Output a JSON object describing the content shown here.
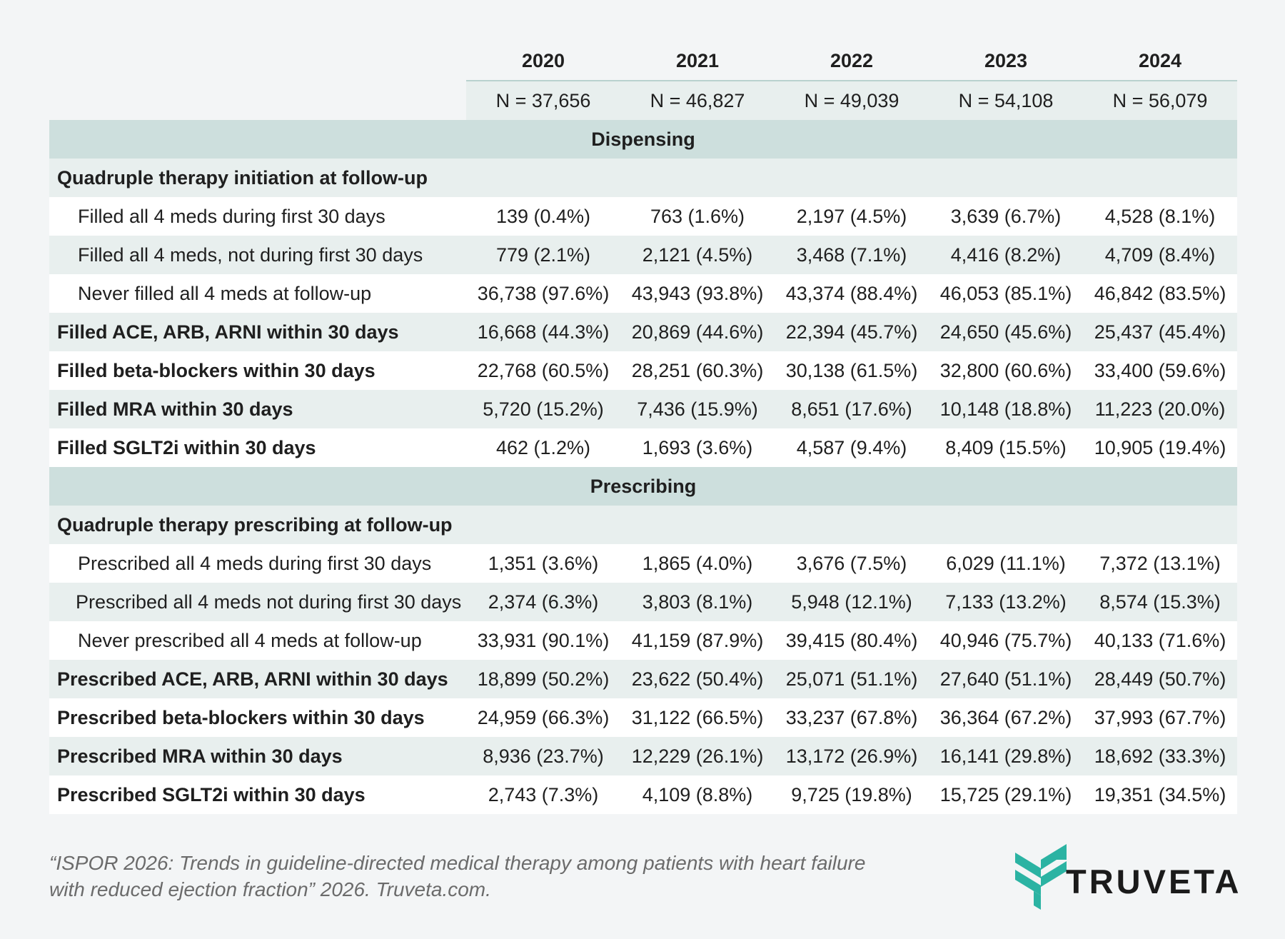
{
  "chart_data": {
    "type": "table",
    "columns": [
      "2020",
      "2021",
      "2022",
      "2023",
      "2024"
    ],
    "n_row": [
      "N = 37,656",
      "N = 46,827",
      "N = 49,039",
      "N = 54,108",
      "N = 56,079"
    ],
    "sections": [
      {
        "title": "Dispensing",
        "rows": [
          {
            "label": "Quadruple therapy initiation at follow-up",
            "style": "header",
            "values": []
          },
          {
            "label": "Filled all 4 meds during first 30 days",
            "style": "indent",
            "values": [
              "139 (0.4%)",
              "763 (1.6%)",
              "2,197 (4.5%)",
              "3,639 (6.7%)",
              "4,528 (8.1%)"
            ]
          },
          {
            "label": "Filled all 4 meds, not during first 30 days",
            "style": "indent",
            "values": [
              "779 (2.1%)",
              "2,121 (4.5%)",
              "3,468 (7.1%)",
              "4,416 (8.2%)",
              "4,709 (8.4%)"
            ]
          },
          {
            "label": "Never filled all 4 meds at follow-up",
            "style": "indent",
            "values": [
              "36,738 (97.6%)",
              "43,943 (93.8%)",
              "43,374 (88.4%)",
              "46,053 (85.1%)",
              "46,842 (83.5%)"
            ]
          },
          {
            "label": "Filled ACE, ARB, ARNI within 30 days",
            "style": "bold",
            "values": [
              "16,668 (44.3%)",
              "20,869 (44.6%)",
              "22,394 (45.7%)",
              "24,650 (45.6%)",
              "25,437 (45.4%)"
            ]
          },
          {
            "label": "Filled beta-blockers within 30 days",
            "style": "bold",
            "values": [
              "22,768 (60.5%)",
              "28,251 (60.3%)",
              "30,138 (61.5%)",
              "32,800 (60.6%)",
              "33,400 (59.6%)"
            ]
          },
          {
            "label": "Filled MRA within 30 days",
            "style": "bold",
            "values": [
              "5,720 (15.2%)",
              "7,436 (15.9%)",
              "8,651 (17.6%)",
              "10,148 (18.8%)",
              "11,223 (20.0%)"
            ]
          },
          {
            "label": "Filled SGLT2i within 30 days",
            "style": "bold",
            "values": [
              "462 (1.2%)",
              "1,693 (3.6%)",
              "4,587 (9.4%)",
              "8,409 (15.5%)",
              "10,905 (19.4%)"
            ]
          }
        ]
      },
      {
        "title": "Prescribing",
        "rows": [
          {
            "label": "Quadruple therapy prescribing at follow-up",
            "style": "header",
            "values": []
          },
          {
            "label": "Prescribed all 4 meds during first 30 days",
            "style": "indent",
            "values": [
              "1,351 (3.6%)",
              "1,865 (4.0%)",
              "3,676 (7.5%)",
              "6,029 (11.1%)",
              "7,372 (13.1%)"
            ]
          },
          {
            "label": "Prescribed all 4 meds not during first 30 days",
            "style": "indent2",
            "values": [
              "2,374 (6.3%)",
              "3,803 (8.1%)",
              "5,948 (12.1%)",
              "7,133 (13.2%)",
              "8,574 (15.3%)"
            ]
          },
          {
            "label": "Never prescribed all 4 meds at follow-up",
            "style": "indent",
            "values": [
              "33,931 (90.1%)",
              "41,159 (87.9%)",
              "39,415 (80.4%)",
              "40,946 (75.7%)",
              "40,133 (71.6%)"
            ]
          },
          {
            "label": "Prescribed ACE, ARB, ARNI within 30 days",
            "style": "bold",
            "values": [
              "18,899 (50.2%)",
              "23,622 (50.4%)",
              "25,071 (51.1%)",
              "27,640 (51.1%)",
              "28,449 (50.7%)"
            ]
          },
          {
            "label": "Prescribed beta-blockers within 30 days",
            "style": "bold",
            "values": [
              "24,959 (66.3%)",
              "31,122 (66.5%)",
              "33,237 (67.8%)",
              "36,364 (67.2%)",
              "37,993 (67.7%)"
            ]
          },
          {
            "label": "Prescribed MRA within 30 days",
            "style": "bold",
            "values": [
              "8,936 (23.7%)",
              "12,229 (26.1%)",
              "13,172 (26.9%)",
              "16,141 (29.8%)",
              "18,692 (33.3%)"
            ]
          },
          {
            "label": "Prescribed SGLT2i within 30 days",
            "style": "bold",
            "values": [
              "2,743 (7.3%)",
              "4,109 (8.8%)",
              "9,725 (19.8%)",
              "15,725 (29.1%)",
              "19,351 (34.5%)"
            ]
          }
        ]
      }
    ]
  },
  "citation": {
    "line1": "“ISPOR 2026: Trends in guideline-directed medical therapy among patients with heart failure",
    "line2": "with reduced ejection fraction” 2026. Truveta.com."
  },
  "logo": {
    "text": "TRUVETA",
    "color": "#2bb3a3"
  },
  "colors": {
    "section_band": "#cddfdd",
    "shaded_row": "#e8efee",
    "header_rule": "#b9d2cf",
    "background": "#f3f5f6"
  }
}
